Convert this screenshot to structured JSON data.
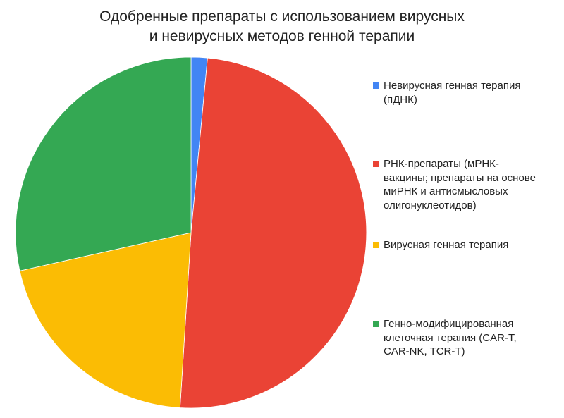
{
  "chart_data": {
    "type": "pie",
    "title_lines": [
      "Одобренные препараты с использованием вирусных",
      "и невирусных методов генной терапии"
    ],
    "legend_position": "right",
    "slices": [
      {
        "label_lines": [
          "Невирусная генная терапия",
          "(пДНК)"
        ],
        "value": 1.5,
        "color": "#4285f4"
      },
      {
        "label_lines": [
          "РНК-препараты (мРНК-",
          "вакцины; препараты на основе",
          "миРНК и антисмысловых",
          "олигонуклеотидов)"
        ],
        "value": 49.5,
        "color": "#ea4335"
      },
      {
        "label_lines": [
          "Вирусная генная терапия"
        ],
        "value": 20.5,
        "color": "#fbbc04"
      },
      {
        "label_lines": [
          "Генно-модифицированная",
          "клеточная терапия (CAR-T,",
          "CAR-NK, TCR-T)"
        ],
        "value": 28.5,
        "color": "#34a853"
      }
    ]
  }
}
